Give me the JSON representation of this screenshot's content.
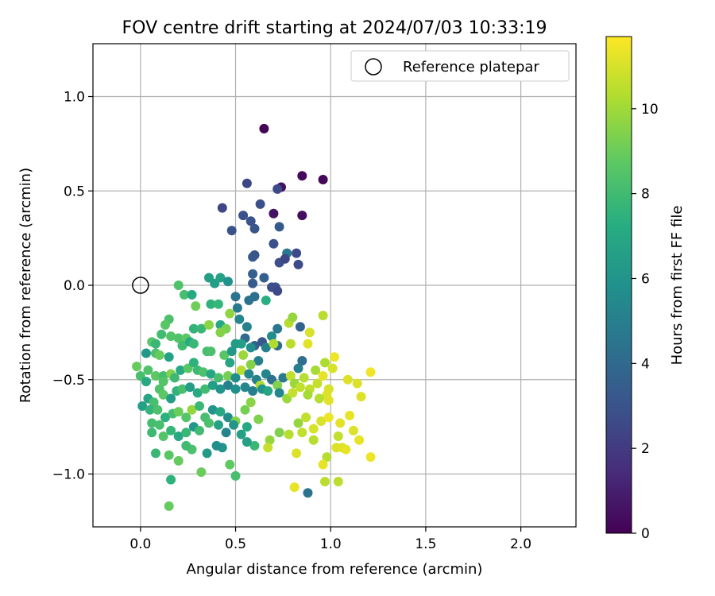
{
  "chart_data": {
    "type": "scatter",
    "title": "FOV centre drift starting at 2024/07/03 10:33:19",
    "xlabel": "Angular distance from reference (arcmin)",
    "ylabel": "Rotation from reference (arcmin)",
    "xlim": [
      -0.25,
      2.29
    ],
    "ylim": [
      -1.28,
      1.28
    ],
    "x_ticks": [
      0.0,
      0.5,
      1.0,
      1.5,
      2.0
    ],
    "x_tick_labels": [
      "0.0",
      "0.5",
      "1.0",
      "1.5",
      "2.0"
    ],
    "y_ticks": [
      -1.0,
      -0.5,
      0.0,
      0.5,
      1.0
    ],
    "y_tick_labels": [
      "−1.0",
      "−0.5",
      "0.0",
      "0.5",
      "1.0"
    ],
    "grid": true,
    "legend": {
      "position": "top-right",
      "entries": [
        "Reference platepar"
      ]
    },
    "reference_point": {
      "name": "Reference platepar",
      "x": 0.0,
      "y": 0.0
    },
    "colorbar": {
      "label": "Hours from first FF file",
      "colormap": "viridis",
      "range": [
        0,
        11.7
      ],
      "ticks": [
        0,
        2,
        4,
        6,
        8,
        10
      ],
      "tick_labels": [
        "0",
        "2",
        "4",
        "6",
        "8",
        "10"
      ]
    },
    "points": [
      [
        0.65,
        0.83,
        0.1
      ],
      [
        0.85,
        0.58,
        0.3
      ],
      [
        0.96,
        0.56,
        0.2
      ],
      [
        0.74,
        0.52,
        0.5
      ],
      [
        0.85,
        0.37,
        0.4
      ],
      [
        0.7,
        0.38,
        0.6
      ],
      [
        0.56,
        0.54,
        2.5
      ],
      [
        0.72,
        0.51,
        2.6
      ],
      [
        0.63,
        0.43,
        2.8
      ],
      [
        0.43,
        0.41,
        2.4
      ],
      [
        0.54,
        0.37,
        2.9
      ],
      [
        0.58,
        0.34,
        3.0
      ],
      [
        0.48,
        0.29,
        3.0
      ],
      [
        0.6,
        0.3,
        3.1
      ],
      [
        0.73,
        0.31,
        3.3
      ],
      [
        0.7,
        0.22,
        2.9
      ],
      [
        0.82,
        0.17,
        2.6
      ],
      [
        0.77,
        0.17,
        4.6
      ],
      [
        0.6,
        0.16,
        3.0
      ],
      [
        0.59,
        0.15,
        3.2
      ],
      [
        0.73,
        0.12,
        2.8
      ],
      [
        0.76,
        0.14,
        2.5
      ],
      [
        0.83,
        0.11,
        2.7
      ],
      [
        0.59,
        0.06,
        3.5
      ],
      [
        0.65,
        0.04,
        3.5
      ],
      [
        0.71,
        -0.01,
        3.0
      ],
      [
        0.59,
        0.01,
        3.4
      ],
      [
        0.69,
        -0.01,
        2.8
      ],
      [
        0.72,
        -0.03,
        2.6
      ],
      [
        0.36,
        0.04,
        6.5
      ],
      [
        0.39,
        0.01,
        6.5
      ],
      [
        0.42,
        0.04,
        6.7
      ],
      [
        0.46,
        0.02,
        5.9
      ],
      [
        0.2,
        0.0,
        8.4
      ],
      [
        0.23,
        -0.05,
        8.2
      ],
      [
        0.27,
        -0.05,
        7.1
      ],
      [
        0.37,
        -0.1,
        7.5
      ],
      [
        0.41,
        -0.1,
        7.7
      ],
      [
        0.29,
        -0.11,
        9.1
      ],
      [
        0.5,
        -0.06,
        4.5
      ],
      [
        0.57,
        -0.08,
        4.4
      ],
      [
        0.6,
        -0.06,
        4.3
      ],
      [
        0.66,
        -0.08,
        7.3
      ],
      [
        0.51,
        -0.12,
        4.7
      ],
      [
        0.15,
        -0.18,
        8.3
      ],
      [
        0.13,
        -0.21,
        8.6
      ],
      [
        0.11,
        -0.26,
        8.0
      ],
      [
        0.16,
        -0.27,
        8.5
      ],
      [
        0.2,
        -0.28,
        8.4
      ],
      [
        0.24,
        -0.28,
        8.7
      ],
      [
        0.28,
        -0.23,
        7.6
      ],
      [
        0.32,
        -0.23,
        7.8
      ],
      [
        0.36,
        -0.21,
        9.6
      ],
      [
        0.42,
        -0.21,
        7.0
      ],
      [
        0.45,
        -0.23,
        9.3
      ],
      [
        0.42,
        -0.25,
        9.5
      ],
      [
        0.47,
        -0.15,
        9.7
      ],
      [
        0.52,
        -0.18,
        5.4
      ],
      [
        0.56,
        -0.22,
        5.1
      ],
      [
        0.55,
        -0.28,
        4.0
      ],
      [
        0.6,
        -0.32,
        3.5
      ],
      [
        0.64,
        -0.3,
        3.2
      ],
      [
        0.66,
        -0.33,
        5.1
      ],
      [
        0.69,
        -0.27,
        5.6
      ],
      [
        0.72,
        -0.23,
        4.6
      ],
      [
        0.72,
        -0.32,
        4.0
      ],
      [
        0.78,
        -0.2,
        10.4
      ],
      [
        0.8,
        -0.17,
        9.8
      ],
      [
        0.84,
        -0.22,
        3.7
      ],
      [
        0.89,
        -0.25,
        11.0
      ],
      [
        0.96,
        -0.16,
        10.4
      ],
      [
        0.06,
        -0.3,
        8.6
      ],
      [
        0.08,
        -0.31,
        7.8
      ],
      [
        0.03,
        -0.36,
        6.2
      ],
      [
        0.08,
        -0.36,
        8.3
      ],
      [
        0.1,
        -0.37,
        8.9
      ],
      [
        0.15,
        -0.38,
        6.7
      ],
      [
        0.22,
        -0.32,
        8.0
      ],
      [
        0.26,
        -0.3,
        7.1
      ],
      [
        0.28,
        -0.31,
        7.8
      ],
      [
        0.35,
        -0.35,
        8.1
      ],
      [
        0.37,
        -0.35,
        8.3
      ],
      [
        0.44,
        -0.37,
        8.6
      ],
      [
        0.5,
        -0.31,
        6.4
      ],
      [
        0.53,
        -0.31,
        6.5
      ],
      [
        0.58,
        -0.33,
        5.8
      ],
      [
        0.62,
        -0.4,
        5.0
      ],
      [
        0.58,
        -0.42,
        9.5
      ],
      [
        0.54,
        -0.37,
        9.9
      ],
      [
        0.48,
        -0.35,
        6.2
      ],
      [
        0.47,
        -0.41,
        6.8
      ],
      [
        0.7,
        -0.31,
        10.3
      ],
      [
        0.79,
        -0.31,
        10.5
      ],
      [
        0.85,
        -0.4,
        4.2
      ],
      [
        0.83,
        -0.44,
        5.0
      ],
      [
        0.88,
        -0.31,
        11.2
      ],
      [
        0.92,
        -0.45,
        10.1
      ],
      [
        0.97,
        -0.41,
        10.3
      ],
      [
        0.96,
        -0.48,
        11.3
      ],
      [
        1.01,
        -0.44,
        11.0
      ],
      [
        1.02,
        -0.38,
        11.4
      ],
      [
        1.21,
        -0.46,
        11.5
      ],
      [
        1.14,
        -0.52,
        11.1
      ],
      [
        1.09,
        -0.5,
        11.1
      ],
      [
        0.99,
        -0.55,
        11.0
      ],
      [
        0.99,
        -0.61,
        11.2
      ],
      [
        1.16,
        -0.59,
        11.1
      ],
      [
        1.15,
        -0.82,
        11.3
      ],
      [
        1.21,
        -0.91,
        11.4
      ],
      [
        1.12,
        -0.77,
        11.1
      ],
      [
        1.1,
        -0.69,
        11.3
      ],
      [
        1.05,
        -0.73,
        11.2
      ],
      [
        -0.02,
        -0.43,
        8.9
      ],
      [
        0.04,
        -0.45,
        8.4
      ],
      [
        0.0,
        -0.48,
        8.2
      ],
      [
        0.03,
        -0.51,
        7.1
      ],
      [
        0.08,
        -0.48,
        8.7
      ],
      [
        0.12,
        -0.48,
        8.1
      ],
      [
        0.12,
        -0.51,
        8.5
      ],
      [
        0.16,
        -0.47,
        9.4
      ],
      [
        0.18,
        -0.49,
        7.9
      ],
      [
        0.21,
        -0.45,
        7.1
      ],
      [
        0.25,
        -0.44,
        8.6
      ],
      [
        0.28,
        -0.41,
        7.5
      ],
      [
        0.3,
        -0.45,
        7.9
      ],
      [
        0.33,
        -0.46,
        8.3
      ],
      [
        0.37,
        -0.47,
        6.9
      ],
      [
        0.41,
        -0.49,
        8.2
      ],
      [
        0.46,
        -0.48,
        9.2
      ],
      [
        0.5,
        -0.49,
        5.7
      ],
      [
        0.53,
        -0.45,
        10.4
      ],
      [
        0.57,
        -0.47,
        5.4
      ],
      [
        0.61,
        -0.5,
        5.1
      ],
      [
        0.63,
        -0.53,
        10.2
      ],
      [
        0.66,
        -0.47,
        5.3
      ],
      [
        0.69,
        -0.5,
        4.4
      ],
      [
        0.72,
        -0.53,
        9.4
      ],
      [
        0.75,
        -0.49,
        4.7
      ],
      [
        0.79,
        -0.48,
        10.6
      ],
      [
        0.81,
        -0.52,
        9.9
      ],
      [
        0.86,
        -0.49,
        10.4
      ],
      [
        0.89,
        -0.55,
        10.6
      ],
      [
        0.93,
        -0.52,
        10.7
      ],
      [
        0.98,
        -0.58,
        11.1
      ],
      [
        0.04,
        -0.6,
        6.8
      ],
      [
        0.07,
        -0.62,
        8.2
      ],
      [
        0.1,
        -0.55,
        8.4
      ],
      [
        0.12,
        -0.58,
        8.7
      ],
      [
        0.16,
        -0.6,
        6.5
      ],
      [
        0.19,
        -0.56,
        7.6
      ],
      [
        0.22,
        -0.55,
        8.2
      ],
      [
        0.26,
        -0.54,
        6.4
      ],
      [
        0.3,
        -0.57,
        7.1
      ],
      [
        0.34,
        -0.55,
        8.0
      ],
      [
        0.38,
        -0.53,
        6.5
      ],
      [
        0.42,
        -0.55,
        6.0
      ],
      [
        0.46,
        -0.53,
        5.1
      ],
      [
        0.5,
        -0.55,
        5.8
      ],
      [
        0.55,
        -0.54,
        5.4
      ],
      [
        0.59,
        -0.56,
        5.0
      ],
      [
        0.64,
        -0.55,
        5.9
      ],
      [
        0.67,
        -0.56,
        6.8
      ],
      [
        0.73,
        -0.57,
        5.4
      ],
      [
        0.77,
        -0.6,
        9.9
      ],
      [
        0.8,
        -0.57,
        10.7
      ],
      [
        0.84,
        -0.54,
        10.6
      ],
      [
        0.88,
        -0.58,
        10.1
      ],
      [
        0.94,
        -0.6,
        10.4
      ],
      [
        0.01,
        -0.64,
        6.6
      ],
      [
        0.05,
        -0.66,
        7.6
      ],
      [
        0.09,
        -0.66,
        8.3
      ],
      [
        0.13,
        -0.7,
        7.4
      ],
      [
        0.17,
        -0.68,
        8.1
      ],
      [
        0.2,
        -0.67,
        9.0
      ],
      [
        0.24,
        -0.7,
        8.5
      ],
      [
        0.27,
        -0.66,
        9.8
      ],
      [
        0.31,
        -0.64,
        7.8
      ],
      [
        0.34,
        -0.7,
        8.2
      ],
      [
        0.38,
        -0.66,
        6.0
      ],
      [
        0.42,
        -0.67,
        7.0
      ],
      [
        0.46,
        -0.7,
        5.7
      ],
      [
        0.5,
        -0.72,
        9.4
      ],
      [
        0.55,
        -0.66,
        9.2
      ],
      [
        0.58,
        -0.62,
        9.6
      ],
      [
        0.62,
        -0.71,
        9.4
      ],
      [
        0.68,
        -0.82,
        9.8
      ],
      [
        0.73,
        -0.78,
        9.4
      ],
      [
        0.78,
        -0.79,
        10.4
      ],
      [
        0.83,
        -0.73,
        9.8
      ],
      [
        0.87,
        -0.7,
        10.6
      ],
      [
        0.91,
        -0.76,
        11.0
      ],
      [
        0.95,
        -0.72,
        11.0
      ],
      [
        0.99,
        -0.7,
        11.4
      ],
      [
        1.04,
        -0.8,
        10.6
      ],
      [
        1.06,
        -0.86,
        11.1
      ],
      [
        1.08,
        -0.87,
        11.3
      ],
      [
        1.03,
        -0.86,
        11.1
      ],
      [
        0.98,
        -0.91,
        10.4
      ],
      [
        0.96,
        -0.95,
        11.3
      ],
      [
        0.91,
        -0.82,
        10.4
      ],
      [
        0.85,
        -0.78,
        10.6
      ],
      [
        0.82,
        -0.89,
        11.1
      ],
      [
        0.67,
        -0.86,
        10.7
      ],
      [
        0.06,
        -0.73,
        8.1
      ],
      [
        0.1,
        -0.74,
        8.2
      ],
      [
        0.06,
        -0.78,
        7.9
      ],
      [
        0.12,
        -0.8,
        8.5
      ],
      [
        0.16,
        -0.77,
        7.7
      ],
      [
        0.2,
        -0.8,
        7.0
      ],
      [
        0.24,
        -0.78,
        7.8
      ],
      [
        0.28,
        -0.75,
        6.2
      ],
      [
        0.31,
        -0.77,
        8.0
      ],
      [
        0.36,
        -0.73,
        8.3
      ],
      [
        0.41,
        -0.74,
        6.7
      ],
      [
        0.45,
        -0.78,
        5.3
      ],
      [
        0.49,
        -0.74,
        6.1
      ],
      [
        0.53,
        -0.79,
        6.6
      ],
      [
        0.56,
        -0.75,
        7.0
      ],
      [
        0.6,
        -0.85,
        7.8
      ],
      [
        0.56,
        -0.83,
        6.6
      ],
      [
        0.43,
        -0.86,
        6.0
      ],
      [
        0.4,
        -0.85,
        5.7
      ],
      [
        0.35,
        -0.89,
        6.3
      ],
      [
        0.27,
        -0.87,
        8.3
      ],
      [
        0.24,
        -0.85,
        8.0
      ],
      [
        0.2,
        -0.93,
        8.9
      ],
      [
        0.15,
        -0.9,
        8.6
      ],
      [
        0.08,
        -0.89,
        7.8
      ],
      [
        0.32,
        -0.99,
        9.0
      ],
      [
        0.47,
        -0.95,
        8.8
      ],
      [
        0.5,
        -1.01,
        8.2
      ],
      [
        0.16,
        -1.03,
        7.5
      ],
      [
        0.15,
        -1.17,
        8.9
      ],
      [
        0.81,
        -1.07,
        11.3
      ],
      [
        0.88,
        -1.1,
        4.5
      ],
      [
        0.97,
        -1.04,
        10.5
      ],
      [
        1.04,
        -1.04,
        10.5
      ]
    ]
  }
}
